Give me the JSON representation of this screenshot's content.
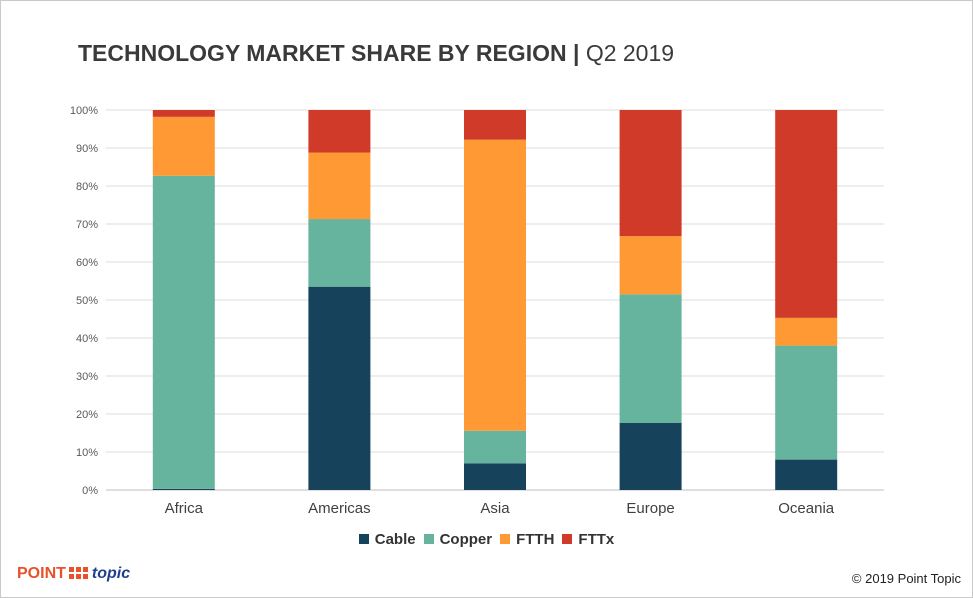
{
  "title": {
    "bold": "TECHNOLOGY MARKET SHARE BY REGION",
    "separator": "|",
    "normal": "Q2 2019"
  },
  "chart_data": {
    "type": "bar",
    "stacked": true,
    "categories": [
      "Africa",
      "Americas",
      "Asia",
      "Europe",
      "Oceania"
    ],
    "series": [
      {
        "name": "Cable",
        "color": "#16425b",
        "values": [
          0.3,
          53.5,
          7.0,
          17.7,
          8.0
        ]
      },
      {
        "name": "Copper",
        "color": "#66b49e",
        "values": [
          82.4,
          17.8,
          8.6,
          33.8,
          30.0
        ]
      },
      {
        "name": "FTTH",
        "color": "#ff9933",
        "values": [
          15.5,
          17.5,
          76.6,
          15.3,
          7.3
        ]
      },
      {
        "name": "FTTx",
        "color": "#d03a28",
        "values": [
          1.8,
          11.2,
          7.8,
          33.2,
          54.7
        ]
      }
    ],
    "yticks": [
      "0%",
      "10%",
      "20%",
      "30%",
      "40%",
      "50%",
      "60%",
      "70%",
      "80%",
      "90%",
      "100%"
    ],
    "ylim": [
      0,
      100
    ],
    "grid": true,
    "legend_position": "bottom"
  },
  "footer": {
    "logo_point": "POINT",
    "logo_topic": "topic",
    "copyright": "© 2019 Point Topic"
  }
}
